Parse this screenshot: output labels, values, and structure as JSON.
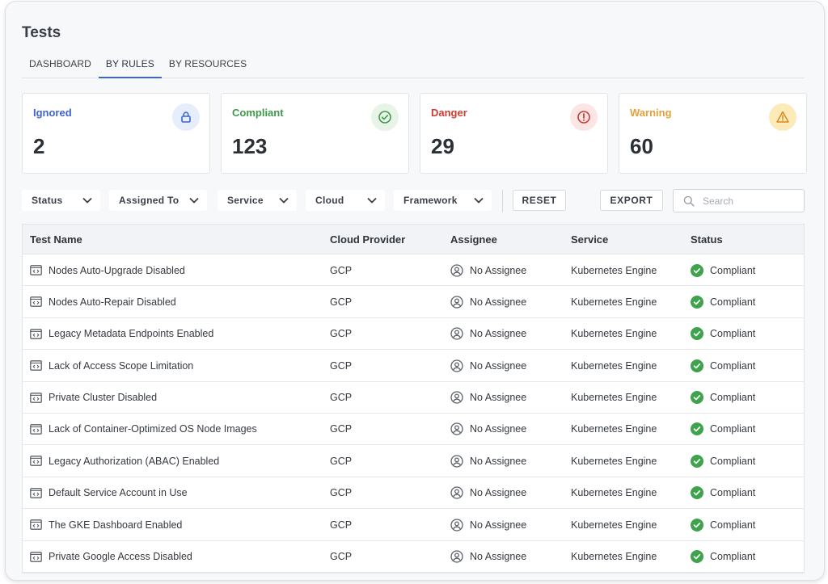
{
  "page": {
    "title": "Tests"
  },
  "tabs": [
    {
      "label": "DASHBOARD",
      "active": false
    },
    {
      "label": "BY RULES",
      "active": true
    },
    {
      "label": "BY RESOURCES",
      "active": false
    }
  ],
  "cards": [
    {
      "label": "Ignored",
      "value": "2",
      "color": "#3d63d6",
      "icon_bg": "#e6edfb",
      "icon": "lock-icon"
    },
    {
      "label": "Compliant",
      "value": "123",
      "color": "#3e9a4a",
      "icon_bg": "#e7f4e7",
      "icon": "check-circle-icon"
    },
    {
      "label": "Danger",
      "value": "29",
      "color": "#cf3b32",
      "icon_bg": "#fbe6e5",
      "icon": "alert-circle-icon"
    },
    {
      "label": "Warning",
      "value": "60",
      "color": "#e7a03a",
      "icon_bg": "#fcebb8",
      "icon": "warning-triangle-icon"
    }
  ],
  "filters": [
    {
      "label": "Status"
    },
    {
      "label": "Assigned To"
    },
    {
      "label": "Service"
    },
    {
      "label": "Cloud"
    },
    {
      "label": "Framework"
    }
  ],
  "buttons": {
    "reset": "RESET",
    "export": "EXPORT"
  },
  "search": {
    "placeholder": "Search",
    "value": ""
  },
  "table": {
    "columns": [
      "Test Name",
      "Cloud Provider",
      "Assignee",
      "Service",
      "Status"
    ],
    "status_color": "#3fa34d",
    "rows": [
      {
        "name": "Nodes Auto-Upgrade Disabled",
        "provider": "GCP",
        "assignee": "No Assignee",
        "service": "Kubernetes Engine",
        "status": "Compliant"
      },
      {
        "name": "Nodes Auto-Repair Disabled",
        "provider": "GCP",
        "assignee": "No Assignee",
        "service": "Kubernetes Engine",
        "status": "Compliant"
      },
      {
        "name": "Legacy Metadata Endpoints Enabled",
        "provider": "GCP",
        "assignee": "No Assignee",
        "service": "Kubernetes Engine",
        "status": "Compliant"
      },
      {
        "name": "Lack of Access Scope Limitation",
        "provider": "GCP",
        "assignee": "No Assignee",
        "service": "Kubernetes Engine",
        "status": "Compliant"
      },
      {
        "name": "Private Cluster Disabled",
        "provider": "GCP",
        "assignee": "No Assignee",
        "service": "Kubernetes Engine",
        "status": "Compliant"
      },
      {
        "name": "Lack of Container-Optimized OS Node Images",
        "provider": "GCP",
        "assignee": "No Assignee",
        "service": "Kubernetes Engine",
        "status": "Compliant"
      },
      {
        "name": "Legacy Authorization (ABAC) Enabled",
        "provider": "GCP",
        "assignee": "No Assignee",
        "service": "Kubernetes Engine",
        "status": "Compliant"
      },
      {
        "name": "Default Service Account in Use",
        "provider": "GCP",
        "assignee": "No Assignee",
        "service": "Kubernetes Engine",
        "status": "Compliant"
      },
      {
        "name": "The GKE Dashboard Enabled",
        "provider": "GCP",
        "assignee": "No Assignee",
        "service": "Kubernetes Engine",
        "status": "Compliant"
      },
      {
        "name": "Private Google Access Disabled",
        "provider": "GCP",
        "assignee": "No Assignee",
        "service": "Kubernetes Engine",
        "status": "Compliant"
      }
    ]
  }
}
